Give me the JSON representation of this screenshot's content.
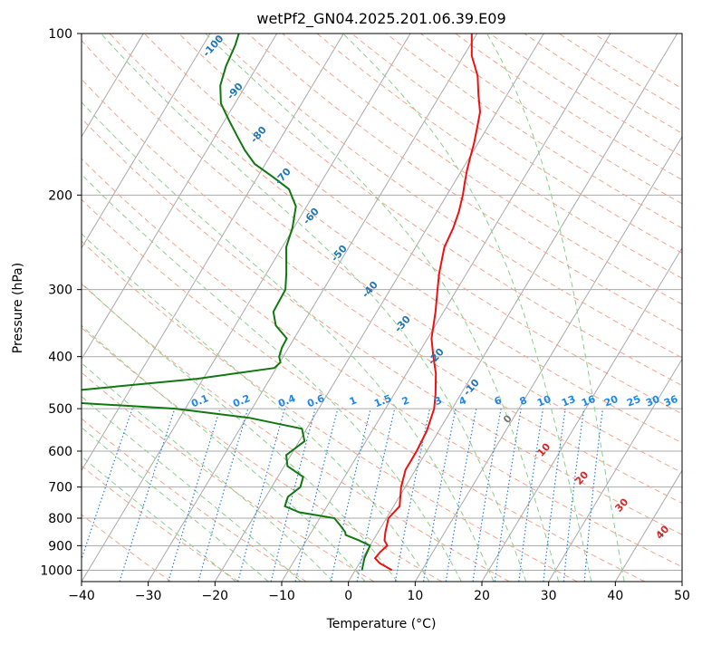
{
  "chart_data": {
    "type": "line",
    "subtype": "skew-t log-p diagram",
    "title": "wetPf2_GN04.2025.201.06.39.E09",
    "xlabel": "Temperature (°C)",
    "ylabel": "Pressure (hPa)",
    "xlim": [
      -40,
      50
    ],
    "ylim": [
      1050,
      100
    ],
    "y_scale": "log",
    "grid": true,
    "x_ticks": [
      "−40",
      "−30",
      "−20",
      "−10",
      "0",
      "10",
      "20",
      "30",
      "40",
      "50"
    ],
    "y_ticks": [
      "100",
      "200",
      "300",
      "400",
      "500",
      "600",
      "700",
      "800",
      "900",
      "1000"
    ],
    "series": [
      {
        "kind": "temperature",
        "color": "#ee1111",
        "points": [
          [
            1000,
            5.5
          ],
          [
            970,
            3.0
          ],
          [
            950,
            1.9
          ],
          [
            925,
            2.1
          ],
          [
            900,
            2.6
          ],
          [
            880,
            1.7
          ],
          [
            850,
            1.1
          ],
          [
            800,
            0.3
          ],
          [
            760,
            0.9
          ],
          [
            700,
            -0.6
          ],
          [
            650,
            -1.5
          ],
          [
            600,
            -1.5
          ],
          [
            550,
            -1.8
          ],
          [
            500,
            -2.7
          ],
          [
            470,
            -3.8
          ],
          [
            430,
            -5.6
          ],
          [
            400,
            -7.5
          ],
          [
            370,
            -9.4
          ],
          [
            330,
            -11.2
          ],
          [
            300,
            -12.9
          ],
          [
            280,
            -14.1
          ],
          [
            250,
            -15.7
          ],
          [
            230,
            -16.1
          ],
          [
            215,
            -16.7
          ],
          [
            200,
            -17.6
          ],
          [
            190,
            -18.4
          ],
          [
            180,
            -19.2
          ],
          [
            170,
            -19.9
          ],
          [
            160,
            -20.6
          ],
          [
            150,
            -21.5
          ],
          [
            140,
            -22.5
          ],
          [
            130,
            -24.3
          ],
          [
            120,
            -26.1
          ],
          [
            110,
            -28.8
          ],
          [
            100,
            -30.8
          ]
        ]
      },
      {
        "kind": "dewpoint",
        "color": "#117711",
        "points": [
          [
            1000,
            1.0
          ],
          [
            950,
            0.3
          ],
          [
            900,
            0.0
          ],
          [
            880,
            -2.1
          ],
          [
            860,
            -4.6
          ],
          [
            850,
            -4.9
          ],
          [
            830,
            -6.0
          ],
          [
            800,
            -7.8
          ],
          [
            780,
            -13.6
          ],
          [
            760,
            -16.3
          ],
          [
            730,
            -16.7
          ],
          [
            700,
            -15.7
          ],
          [
            670,
            -16.2
          ],
          [
            640,
            -19.5
          ],
          [
            610,
            -20.7
          ],
          [
            575,
            -19.2
          ],
          [
            545,
            -20.7
          ],
          [
            520,
            -29.6
          ],
          [
            500,
            -41.5
          ],
          [
            485,
            -60.0
          ],
          [
            465,
            -60.0
          ],
          [
            440,
            -41.0
          ],
          [
            420,
            -30.3
          ],
          [
            410,
            -29.9
          ],
          [
            400,
            -30.6
          ],
          [
            385,
            -31.0
          ],
          [
            370,
            -31.1
          ],
          [
            350,
            -33.9
          ],
          [
            330,
            -35.5
          ],
          [
            300,
            -35.7
          ],
          [
            280,
            -37.0
          ],
          [
            250,
            -39.4
          ],
          [
            230,
            -40.2
          ],
          [
            210,
            -41.6
          ],
          [
            195,
            -44.2
          ],
          [
            185,
            -47.7
          ],
          [
            175,
            -51.6
          ],
          [
            165,
            -54.3
          ],
          [
            155,
            -56.8
          ],
          [
            145,
            -59.4
          ],
          [
            135,
            -62.1
          ],
          [
            125,
            -63.8
          ],
          [
            115,
            -64.7
          ],
          [
            105,
            -65.2
          ],
          [
            100,
            -65.7
          ]
        ]
      }
    ],
    "dry_adiabat_labels": [
      "-100",
      "-90",
      "-80",
      "-70",
      "-60",
      "-50",
      "-40",
      "-30",
      "-20",
      "-10"
    ],
    "moist_adiabat_labels": [
      "0",
      "10",
      "20",
      "30",
      "40"
    ],
    "mixing_ratio_labels": [
      "0.1",
      "0.2",
      "0.4",
      "0.6",
      "1",
      "1.5",
      "2",
      "3",
      "4",
      "6",
      "8",
      "10",
      "13",
      "16",
      "20",
      "25",
      "30",
      "36"
    ],
    "colors": {
      "isotherm": "#aaaaaa",
      "isobar": "#aaaaaa",
      "dry_adiabat": "#f4a58a",
      "moist_adiabat": "#8ccf8c",
      "mixing_ratio": "#2a7fdd",
      "dry_label": "#1f77b4",
      "moist_label": "#d62728",
      "mixing_label": "#1e88e5"
    }
  }
}
